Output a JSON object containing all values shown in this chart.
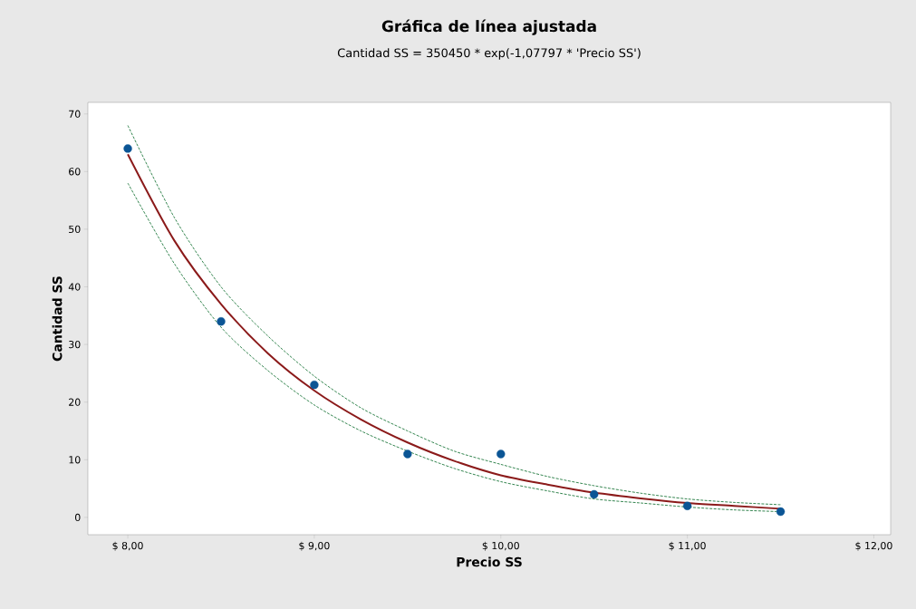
{
  "chart_data": {
    "type": "scatter",
    "title": "Gráfica de línea ajustada",
    "subtitle": "Cantidad SS = 350450 * exp(-1,07797 * 'Precio SS')",
    "xlabel": "Precio SS",
    "ylabel": "Cantidad SS",
    "xlim": [
      7.786,
      12.09
    ],
    "ylim": [
      -3,
      72
    ],
    "xticks": [
      {
        "value": 8,
        "label": "$ 8,00"
      },
      {
        "value": 9,
        "label": "$ 9,00"
      },
      {
        "value": 10,
        "label": "$ 10,00"
      },
      {
        "value": 11,
        "label": "$ 11,00"
      },
      {
        "value": 12,
        "label": "$ 12,00"
      }
    ],
    "yticks": [
      0,
      10,
      20,
      30,
      40,
      50,
      60,
      70
    ],
    "grid": false,
    "series": [
      {
        "color": "#0b5595",
        "marker": "circle",
        "x": [
          8,
          8.5,
          9,
          9.5,
          10,
          10.5,
          11,
          11.5
        ],
        "values": [
          64,
          34,
          23,
          11,
          11,
          4,
          2,
          1
        ]
      },
      {
        "type": "line",
        "color": "#8b1a1a",
        "marker": "none",
        "line_style": "solid",
        "x": [
          8,
          8.25,
          8.5,
          8.75,
          9,
          9.25,
          9.5,
          9.75,
          10,
          10.25,
          10.5,
          10.75,
          11,
          11.25,
          11.5
        ],
        "values": [
          63,
          48,
          37,
          28.5,
          22,
          17,
          13,
          9.8,
          7.3,
          5.7,
          4.3,
          3.3,
          2.5,
          2.0,
          1.5
        ]
      },
      {
        "type": "line",
        "color": "#1e783c",
        "marker": "none",
        "line_style": "dashed",
        "x": [
          8,
          8.25,
          8.5,
          8.75,
          9,
          9.25,
          9.5,
          9.75,
          10,
          10.25,
          10.5,
          10.75,
          11,
          11.25,
          11.5
        ],
        "values": [
          58,
          44,
          33,
          25.5,
          19.5,
          15,
          11.5,
          8.5,
          6.2,
          4.6,
          3.2,
          2.5,
          1.8,
          1.3,
          1.0
        ]
      },
      {
        "type": "line",
        "color": "#1e783c",
        "marker": "none",
        "line_style": "dashed",
        "x": [
          8,
          8.25,
          8.5,
          8.75,
          9,
          9.25,
          9.5,
          9.75,
          10,
          10.25,
          10.5,
          10.75,
          11,
          11.25,
          11.5
        ],
        "values": [
          68,
          52,
          40,
          31.5,
          24.5,
          19,
          15,
          11.5,
          9.2,
          7.1,
          5.5,
          4.2,
          3.2,
          2.6,
          2.2
        ]
      }
    ]
  }
}
